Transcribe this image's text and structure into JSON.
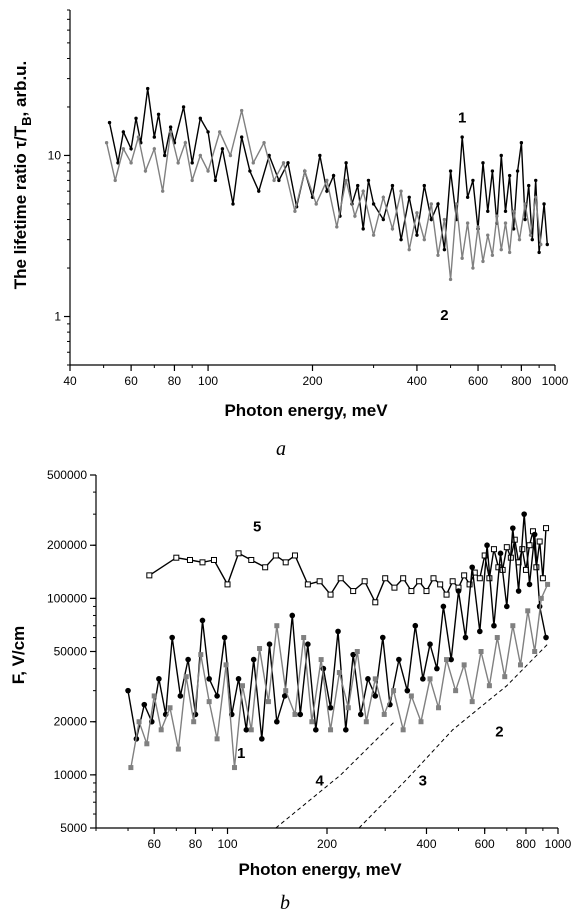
{
  "chart_data": [
    {
      "type": "line",
      "panel_label": "a",
      "xlabel": "Photon energy, meV",
      "ylabel": "The  lifetime ratio τ/T",
      "ylabel_sub": "B",
      "ylabel_suffix": ", arb.u.",
      "x_scale": "log",
      "y_scale": "log",
      "xlim": [
        40,
        1000
      ],
      "ylim": [
        0.5,
        80
      ],
      "x_ticks": [
        40,
        60,
        80,
        100,
        200,
        400,
        600,
        800,
        1000
      ],
      "x_tick_labels": [
        "40",
        "60",
        "80",
        "100",
        "200",
        "400",
        "600",
        "800",
        "1000"
      ],
      "y_ticks": [
        1,
        10
      ],
      "y_tick_labels": [
        "1",
        "10"
      ],
      "grid": false,
      "curve_labels": [
        {
          "text": "1",
          "x": 540,
          "y": 16
        },
        {
          "text": "2",
          "x": 480,
          "y": 0.95
        }
      ],
      "series": [
        {
          "color": "#000000",
          "x": [
            52,
            55,
            57,
            60,
            62,
            64,
            67,
            70,
            72,
            75,
            78,
            80,
            85,
            90,
            95,
            100,
            105,
            110,
            118,
            125,
            132,
            140,
            150,
            160,
            170,
            180,
            190,
            200,
            210,
            220,
            230,
            240,
            250,
            260,
            270,
            280,
            290,
            300,
            320,
            340,
            360,
            380,
            400,
            420,
            440,
            460,
            480,
            500,
            520,
            540,
            560,
            580,
            600,
            620,
            640,
            660,
            680,
            700,
            720,
            740,
            760,
            780,
            800,
            820,
            840,
            860,
            880,
            900,
            930,
            950
          ],
          "y": [
            16,
            9,
            14,
            11,
            17,
            12,
            26,
            13,
            18,
            10,
            15,
            12,
            20,
            9,
            17,
            14,
            7,
            11,
            5,
            13,
            8,
            6,
            10,
            7,
            9,
            4.8,
            8,
            5.5,
            10,
            6,
            7.5,
            4.2,
            9,
            5,
            6.5,
            3.5,
            7,
            5,
            4,
            6.5,
            3,
            5.5,
            3.2,
            6.5,
            4,
            5,
            2.6,
            8,
            4,
            13,
            5.5,
            7,
            3.5,
            9,
            4.5,
            8,
            3.8,
            10,
            4.5,
            7.5,
            3.5,
            8,
            12,
            4,
            6.5,
            3,
            7,
            2.5,
            5,
            2.8
          ]
        },
        {
          "color": "#808080",
          "x": [
            51,
            54,
            57,
            60,
            63,
            66,
            70,
            74,
            78,
            82,
            86,
            90,
            95,
            100,
            108,
            116,
            125,
            135,
            145,
            155,
            165,
            178,
            190,
            205,
            220,
            235,
            250,
            265,
            280,
            300,
            320,
            340,
            360,
            380,
            400,
            420,
            440,
            460,
            480,
            500,
            520,
            540,
            560,
            580,
            600,
            620,
            640,
            660,
            680,
            700,
            720,
            740,
            760,
            790,
            820,
            850,
            880,
            910
          ],
          "y": [
            12,
            7,
            11,
            9,
            13,
            8,
            11,
            6,
            14,
            9,
            12,
            7,
            10,
            8,
            14,
            10,
            19,
            9,
            12,
            7,
            9,
            4.5,
            8,
            5,
            7,
            3.6,
            7,
            4.2,
            6,
            3.2,
            5.5,
            3.5,
            6,
            2.6,
            4.4,
            3,
            5,
            2.4,
            4,
            1.7,
            5,
            2.3,
            3.8,
            2,
            3.6,
            2.2,
            3.2,
            2.4,
            4.2,
            2.6,
            3.8,
            2.5,
            4.5,
            3,
            5,
            3.2,
            5.5,
            2.8
          ]
        }
      ]
    },
    {
      "type": "scatter",
      "panel_label": "b",
      "xlabel": "Photon energy, meV",
      "ylabel": "F, V/cm",
      "x_scale": "log",
      "y_scale": "log",
      "xlim": [
        40,
        1000
      ],
      "ylim": [
        5000,
        500000
      ],
      "x_ticks": [
        60,
        80,
        100,
        200,
        400,
        600,
        800,
        1000
      ],
      "x_tick_labels": [
        "60",
        "80",
        "100",
        "200",
        "400",
        "600",
        "800",
        "1000"
      ],
      "y_ticks": [
        5000,
        10000,
        20000,
        50000,
        100000,
        200000,
        500000
      ],
      "y_tick_labels": [
        "5000",
        "10000",
        "20000",
        "50000",
        "100000",
        "200000",
        "500000"
      ],
      "grid": false,
      "curve_labels": [
        {
          "text": "5",
          "x": 123,
          "y": 240000
        },
        {
          "text": "1",
          "x": 110,
          "y": 12500
        },
        {
          "text": "4",
          "x": 190,
          "y": 8700
        },
        {
          "text": "3",
          "x": 390,
          "y": 8700
        },
        {
          "text": "2",
          "x": 665,
          "y": 16500
        }
      ],
      "series": [
        {
          "marker": "open-square",
          "color": "#000000",
          "x": [
            58,
            70,
            77,
            84,
            91,
            100,
            108,
            118,
            130,
            140,
            150,
            160,
            175,
            190,
            205,
            220,
            240,
            260,
            280,
            300,
            320,
            340,
            360,
            380,
            400,
            420,
            440,
            460,
            480,
            500,
            520,
            540,
            560,
            580,
            600,
            620,
            640,
            660,
            680,
            700,
            720,
            740,
            760,
            780,
            800,
            820,
            840,
            860,
            880,
            900,
            920
          ],
          "y": [
            135000,
            170000,
            165000,
            160000,
            165000,
            120000,
            180000,
            165000,
            150000,
            175000,
            160000,
            175000,
            120000,
            125000,
            105000,
            130000,
            110000,
            125000,
            95000,
            130000,
            115000,
            130000,
            110000,
            125000,
            110000,
            130000,
            120000,
            105000,
            125000,
            115000,
            135000,
            120000,
            140000,
            130000,
            175000,
            130000,
            190000,
            150000,
            145000,
            195000,
            170000,
            215000,
            160000,
            190000,
            145000,
            200000,
            240000,
            150000,
            210000,
            130000,
            250000
          ]
        },
        {
          "marker": "filled-circle",
          "color": "#000000",
          "x": [
            50,
            53,
            56,
            59,
            62,
            65,
            68,
            72,
            76,
            80,
            84,
            88,
            93,
            98,
            103,
            108,
            114,
            120,
            127,
            134,
            141,
            149,
            157,
            166,
            175,
            185,
            195,
            205,
            216,
            228,
            240,
            253,
            266,
            280,
            295,
            310,
            330,
            350,
            370,
            390,
            410,
            430,
            450,
            475,
            500,
            525,
            550,
            580,
            610,
            640,
            670,
            700,
            730,
            760,
            790,
            820,
            850,
            880,
            920
          ],
          "y": [
            30000,
            16000,
            25000,
            20000,
            35000,
            22000,
            60000,
            28000,
            45000,
            22000,
            75000,
            35000,
            28000,
            60000,
            22000,
            35000,
            18000,
            45000,
            16000,
            55000,
            20000,
            28000,
            80000,
            22000,
            55000,
            18000,
            40000,
            24000,
            65000,
            18000,
            48000,
            22000,
            35000,
            28000,
            60000,
            25000,
            45000,
            30000,
            70000,
            35000,
            55000,
            40000,
            90000,
            45000,
            110000,
            60000,
            150000,
            65000,
            200000,
            70000,
            180000,
            90000,
            250000,
            110000,
            300000,
            120000,
            230000,
            90000,
            60000
          ]
        },
        {
          "marker": "filled-square",
          "color": "#808080",
          "x": [
            51,
            54,
            57,
            60,
            63,
            67,
            71,
            75,
            79,
            83,
            88,
            93,
            99,
            105,
            111,
            118,
            125,
            133,
            141,
            150,
            160,
            170,
            180,
            192,
            205,
            218,
            232,
            247,
            263,
            280,
            298,
            318,
            340,
            360,
            385,
            410,
            435,
            460,
            490,
            520,
            550,
            585,
            620,
            655,
            690,
            730,
            770,
            810,
            850,
            890,
            930
          ],
          "y": [
            11000,
            20000,
            15000,
            28000,
            18000,
            24000,
            14000,
            36000,
            20000,
            48000,
            26000,
            16000,
            42000,
            11000,
            32000,
            18000,
            52000,
            26000,
            70000,
            30000,
            22000,
            60000,
            20000,
            45000,
            18000,
            38000,
            24000,
            50000,
            20000,
            35000,
            22000,
            30000,
            18000,
            28000,
            20000,
            35000,
            24000,
            45000,
            30000,
            42000,
            26000,
            50000,
            32000,
            60000,
            36000,
            70000,
            42000,
            85000,
            50000,
            100000,
            120000
          ]
        },
        {
          "marker": "none",
          "line": "dashed",
          "color": "#000000",
          "x": [
            140,
            220,
            320
          ],
          "y": [
            5000,
            10000,
            20000
          ]
        },
        {
          "marker": "none",
          "line": "dashed",
          "color": "#000000",
          "x": [
            250,
            350,
            480,
            700,
            930
          ],
          "y": [
            5000,
            9500,
            18000,
            32000,
            55000
          ]
        }
      ]
    }
  ]
}
